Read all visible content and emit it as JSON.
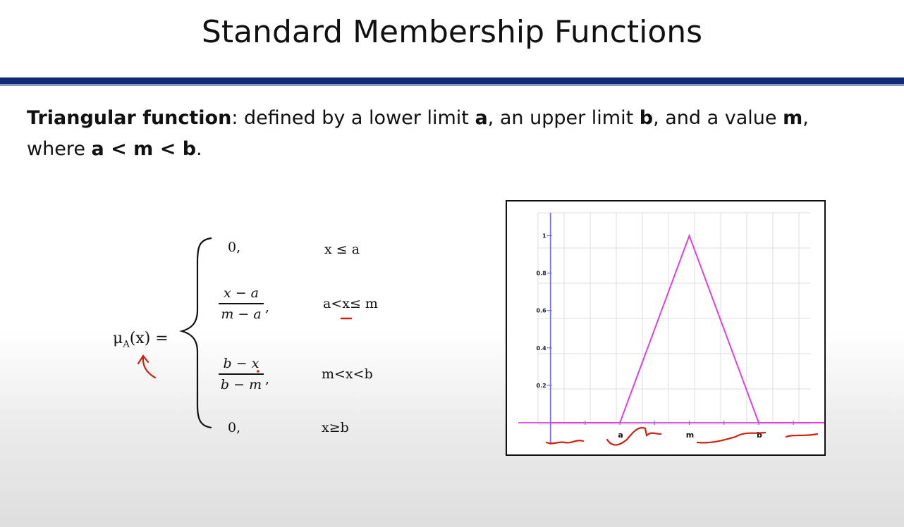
{
  "slide": {
    "title": "Standard Membership Functions",
    "desc_bold_1": "Triangular function",
    "desc_text_1": ": defined by a lower limit ",
    "desc_bold_a": "a",
    "desc_text_2": ", an upper limit ",
    "desc_bold_b": "b",
    "desc_text_3": ", and a value ",
    "desc_bold_m": "m",
    "desc_text_4": ",",
    "desc_text_5": "where ",
    "desc_bold_cond": "a < m < b",
    "desc_text_6": "."
  },
  "formula": {
    "lhs": "μ",
    "lhs_sub": "A",
    "lhs_rest": "(x) =",
    "cases": [
      {
        "value": "0,",
        "condition": "x ≤ a"
      },
      {
        "num": "x − a",
        "den": "m − a",
        "condition": "a<x≤ m"
      },
      {
        "num": "b − x",
        "den": "b − m",
        "condition": "m<x<b"
      },
      {
        "value": "0,",
        "condition": "x≥b"
      }
    ],
    "comma": ","
  },
  "chart_data": {
    "type": "line",
    "series": [
      {
        "x": [
          0,
          1,
          2,
          3,
          4
        ],
        "y": [
          0,
          0,
          1,
          0,
          0
        ]
      }
    ],
    "y_ticks": [
      "0.2",
      "0.4",
      "0.6",
      "0.8",
      "1"
    ],
    "y_tick_values": [
      0.2,
      0.4,
      0.6,
      0.8,
      1
    ],
    "x_labels": [
      {
        "label": "a",
        "x": 1
      },
      {
        "label": "m",
        "x": 2
      },
      {
        "label": "b",
        "x": 3
      }
    ],
    "xlim": [
      -0.2,
      3.6
    ],
    "ylim": [
      0,
      1.1
    ],
    "grid": true,
    "colors": {
      "line": "#e040e0",
      "axis": "#7070e0",
      "baseline": "#e040e0",
      "grid": "#dcdcdc"
    }
  },
  "annotation_color": "#d02010"
}
